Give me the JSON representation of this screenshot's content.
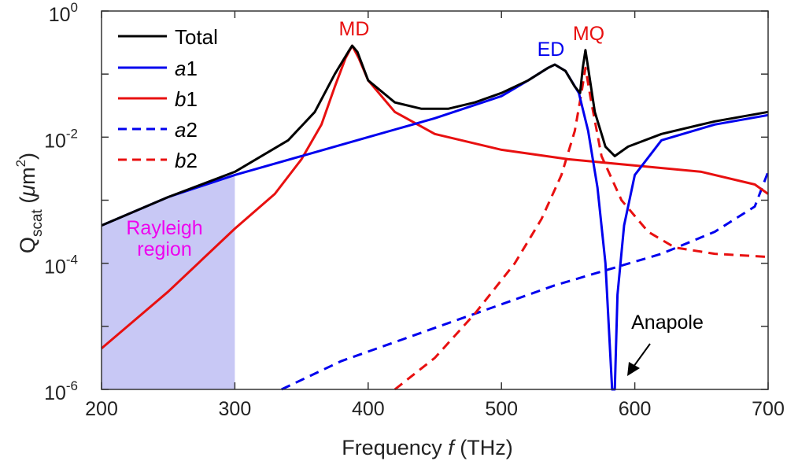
{
  "chart_data": {
    "type": "line",
    "xlabel_prefix": "Frequency ",
    "xlabel_var": "f",
    "xlabel_suffix": " (THz)",
    "ylabel_main": "Q",
    "ylabel_sub": "scat",
    "ylabel_unit_open": " (",
    "ylabel_unit_mu": "μ",
    "ylabel_unit_m": "m",
    "ylabel_unit_exp": "2",
    "ylabel_unit_close": ")",
    "xlim": [
      200,
      700
    ],
    "ylim_log10": [
      -6,
      0
    ],
    "yscale": "log",
    "x_ticks": [
      "200",
      "300",
      "400",
      "500",
      "600",
      "700"
    ],
    "y_ticks": [
      {
        "base": "10",
        "exp": "0"
      },
      {
        "base": "10",
        "exp": "-2"
      },
      {
        "base": "10",
        "exp": "-4"
      },
      {
        "base": "10",
        "exp": "-6"
      }
    ],
    "x_tick_values": [
      200,
      300,
      400,
      500,
      600,
      700
    ],
    "y_tick_log_values": [
      0,
      -2,
      -4,
      -6
    ],
    "rayleigh_region": {
      "x_range": [
        200,
        300
      ],
      "label_line1": "Rayleigh",
      "label_line2": "region",
      "color": "#c8c8f5"
    },
    "series": [
      {
        "name": "Total",
        "prefix": "",
        "italic": "",
        "suffix": "Total",
        "color": "#000000",
        "dash": "solid",
        "points": [
          [
            200,
            -3.4
          ],
          [
            250,
            -2.95
          ],
          [
            300,
            -2.55
          ],
          [
            340,
            -2.05
          ],
          [
            360,
            -1.6
          ],
          [
            375,
            -1.0
          ],
          [
            385,
            -0.65
          ],
          [
            388,
            -0.55
          ],
          [
            392,
            -0.65
          ],
          [
            400,
            -1.1
          ],
          [
            420,
            -1.45
          ],
          [
            440,
            -1.55
          ],
          [
            460,
            -1.55
          ],
          [
            480,
            -1.45
          ],
          [
            500,
            -1.3
          ],
          [
            520,
            -1.1
          ],
          [
            535,
            -0.9
          ],
          [
            540,
            -0.85
          ],
          [
            548,
            -0.95
          ],
          [
            555,
            -1.2
          ],
          [
            559,
            -1.3
          ],
          [
            561,
            -0.9
          ],
          [
            563,
            -0.62
          ],
          [
            565,
            -0.9
          ],
          [
            570,
            -1.6
          ],
          [
            578,
            -2.15
          ],
          [
            585,
            -2.3
          ],
          [
            595,
            -2.15
          ],
          [
            620,
            -1.95
          ],
          [
            660,
            -1.75
          ],
          [
            700,
            -1.6
          ]
        ]
      },
      {
        "name": "a1",
        "prefix": "",
        "italic": "a",
        "suffix": "1",
        "color": "#0000ee",
        "dash": "solid",
        "points": [
          [
            200,
            -3.4
          ],
          [
            250,
            -2.95
          ],
          [
            300,
            -2.6
          ],
          [
            350,
            -2.3
          ],
          [
            400,
            -2.0
          ],
          [
            450,
            -1.7
          ],
          [
            500,
            -1.35
          ],
          [
            520,
            -1.1
          ],
          [
            535,
            -0.9
          ],
          [
            540,
            -0.85
          ],
          [
            548,
            -0.95
          ],
          [
            558,
            -1.3
          ],
          [
            565,
            -1.9
          ],
          [
            572,
            -2.8
          ],
          [
            578,
            -4.0
          ],
          [
            583,
            -6.0
          ],
          [
            585,
            -6.0
          ],
          [
            587,
            -4.5
          ],
          [
            592,
            -3.4
          ],
          [
            600,
            -2.6
          ],
          [
            620,
            -2.05
          ],
          [
            660,
            -1.8
          ],
          [
            700,
            -1.65
          ]
        ]
      },
      {
        "name": "b1",
        "prefix": "",
        "italic": "b",
        "suffix": "1",
        "color": "#e81010",
        "dash": "solid",
        "points": [
          [
            200,
            -5.35
          ],
          [
            250,
            -4.45
          ],
          [
            300,
            -3.45
          ],
          [
            330,
            -2.9
          ],
          [
            350,
            -2.35
          ],
          [
            365,
            -1.8
          ],
          [
            375,
            -1.2
          ],
          [
            383,
            -0.75
          ],
          [
            388,
            -0.55
          ],
          [
            393,
            -0.75
          ],
          [
            400,
            -1.1
          ],
          [
            420,
            -1.6
          ],
          [
            450,
            -1.95
          ],
          [
            500,
            -2.2
          ],
          [
            550,
            -2.35
          ],
          [
            600,
            -2.45
          ],
          [
            650,
            -2.55
          ],
          [
            690,
            -2.75
          ],
          [
            700,
            -2.9
          ]
        ]
      },
      {
        "name": "a2",
        "prefix": "",
        "italic": "a",
        "suffix": "2",
        "color": "#0000ee",
        "dash": "dashed",
        "points": [
          [
            335,
            -6.0
          ],
          [
            380,
            -5.55
          ],
          [
            420,
            -5.25
          ],
          [
            460,
            -4.95
          ],
          [
            500,
            -4.65
          ],
          [
            540,
            -4.35
          ],
          [
            580,
            -4.1
          ],
          [
            620,
            -3.85
          ],
          [
            660,
            -3.5
          ],
          [
            690,
            -3.1
          ],
          [
            700,
            -2.55
          ]
        ]
      },
      {
        "name": "b2",
        "prefix": "",
        "italic": "b",
        "suffix": "2",
        "color": "#e81010",
        "dash": "dashed",
        "points": [
          [
            420,
            -6.0
          ],
          [
            450,
            -5.5
          ],
          [
            480,
            -4.8
          ],
          [
            510,
            -4.0
          ],
          [
            530,
            -3.3
          ],
          [
            545,
            -2.6
          ],
          [
            555,
            -1.9
          ],
          [
            560,
            -1.3
          ],
          [
            563,
            -0.9
          ],
          [
            567,
            -1.4
          ],
          [
            575,
            -2.3
          ],
          [
            590,
            -3.0
          ],
          [
            610,
            -3.5
          ],
          [
            630,
            -3.75
          ],
          [
            660,
            -3.85
          ],
          [
            700,
            -3.9
          ]
        ]
      }
    ],
    "annotations": [
      {
        "text": "MD",
        "color": "#e81010"
      },
      {
        "text": "ED",
        "color": "#0000ee"
      },
      {
        "text": "MQ",
        "color": "#e81010"
      },
      {
        "text": "Anapole",
        "color": "#000000"
      }
    ]
  }
}
